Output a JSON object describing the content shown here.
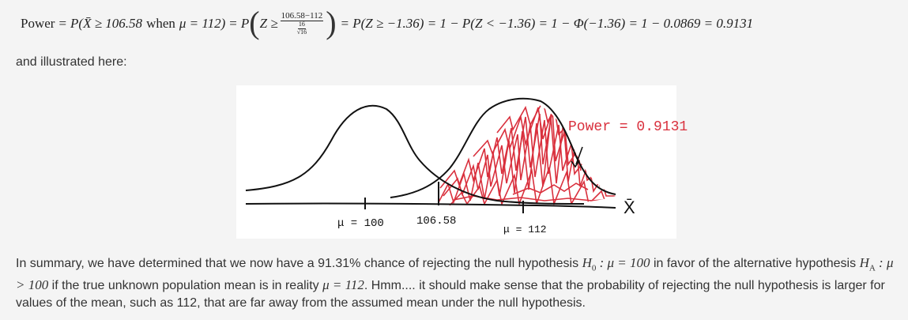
{
  "formula": {
    "power": "Power",
    "eq1": "=",
    "p_open": "P(",
    "xbar_ge": "X̄ ≥ 106.58",
    "when": "when",
    "mu_eq": "μ = 112)",
    "eq2": "=",
    "p2": "P",
    "z_ge": "Z ≥",
    "frac_num": "106.58−112",
    "frac_inner_num": "16",
    "frac_inner_den": "√16",
    "rest": "= P(Z ≥ −1.36) = 1 − P(Z < −1.36) = 1 − Φ(−1.36) = 1 − 0.0869 = 0.9131"
  },
  "intro_text": "and illustrated here:",
  "figure": {
    "power_label": "Power = 0.9131",
    "mu0_label": "μ = 100",
    "crit_label": "106.58",
    "mu1_label": "μ = 112",
    "axis_label": "X̄",
    "colors": {
      "ink": "#111111",
      "hatch": "#d9303d"
    }
  },
  "summary": {
    "p1": "In summary, we have determined that we now have a 91.31% chance of rejecting the null hypothesis ",
    "h0": "H",
    "h0_sub": "0",
    "h0_rest": " : μ = 100",
    "p2": " in favor of the alternative hypothesis ",
    "ha": "H",
    "ha_sub": "A",
    "ha_rest": " : μ > 100",
    "p3": " if the true unknown population mean is in reality ",
    "mu_eq": "μ = 112",
    "p4": ". Hmm.... it should make sense that the probability of rejecting the null hypothesis is larger for values of the mean, such as 112, that are far away from the assumed mean under the null hypothesis."
  }
}
